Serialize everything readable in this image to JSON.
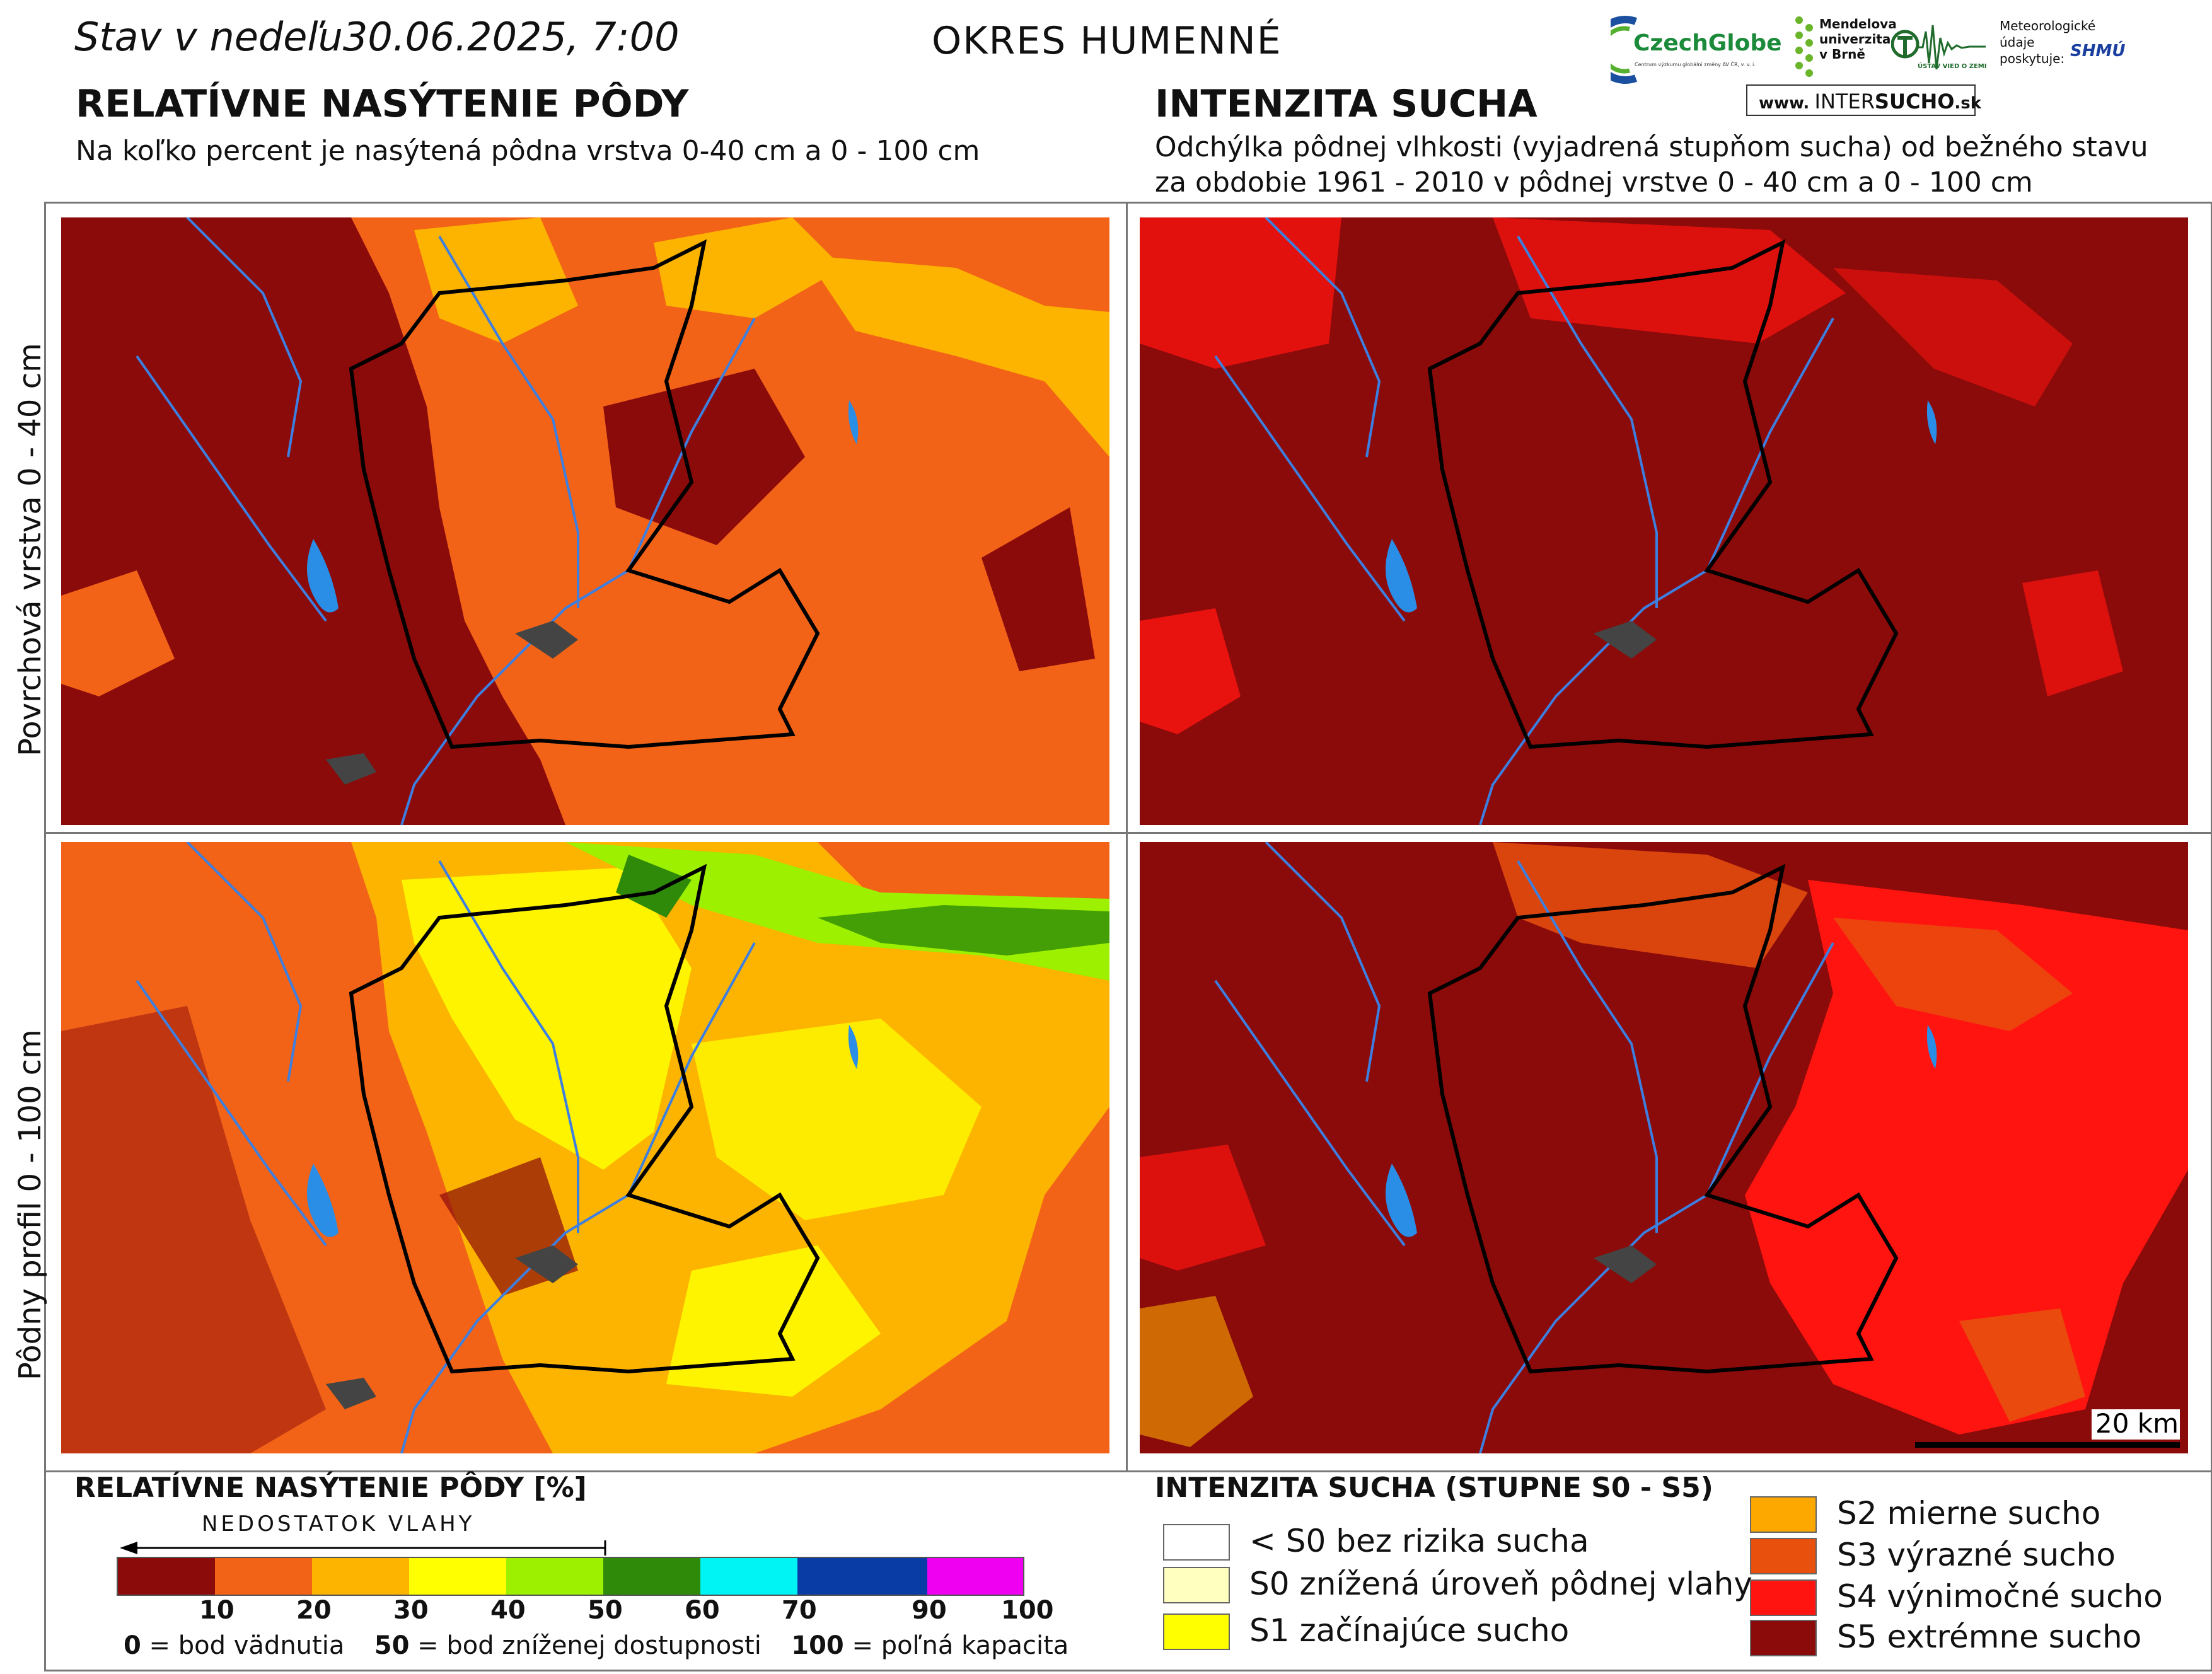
{
  "header": {
    "date_prefix": "Stav v nedeľu",
    "date_value": "30.06.2025, 7:00",
    "district": "OKRES  HUMENNÉ"
  },
  "left_section": {
    "title": "RELATÍVNE NASÝTENIE PÔDY",
    "subtitle": "Na koľko percent je nasýtená pôdna vrstva 0-40 cm a 0 - 100 cm"
  },
  "right_section": {
    "title": "INTENZITA SUCHA",
    "subtitle_line1": "Odchýlka pôdnej vlhkosti (vyjadrená stupňom sucha) od bežného stavu",
    "subtitle_line2": "za obdobie 1961 - 2010 v pôdnej vrstve 0 - 40 cm a 0 - 100 cm"
  },
  "logos": {
    "czechglobe": "CzechGlobe",
    "czechglobe_sub": "Centrum výzkumu globální změny AV ČR, v. v. i.",
    "mendel_line1": "Mendelova",
    "mendel_line2": "univerzita",
    "mendel_line3": "v Brně",
    "uvoz": "ÚSTAV VIED O ZEMI",
    "meteo_line1": "Meteorologické",
    "meteo_line2": "údaje",
    "meteo_line3": "poskytuje:",
    "shmu": "SHMÚ",
    "intersucho_www": "www.",
    "intersucho_name_a": "INTER",
    "intersucho_name_b": "SUCHO",
    "intersucho_tld": ".sk"
  },
  "row_labels": {
    "top": "Povrchová vrstva 0 - 40 cm",
    "bottom": "Pôdny profil 0 - 100 cm"
  },
  "scale_bar": "20 km",
  "saturation_legend": {
    "title": "RELATÍVNE NASÝTENIE PÔDY [%]",
    "arrow_label": "NEDOSTATOK VLAHY",
    "colors": [
      "#8b0a0a",
      "#f26318",
      "#fcb400",
      "#ffff00",
      "#9cf000",
      "#2e8a08",
      "#00f4f4",
      "#0a3ca6",
      "#f000f0"
    ],
    "ticks": [
      "10",
      "20",
      "30",
      "40",
      "50",
      "60",
      "70",
      "90",
      "100"
    ],
    "note_0": "0",
    "note_0_text": " = bod vädnutia",
    "note_50": "50",
    "note_50_text": " = bod zníženej dostupnosti",
    "note_100": "100",
    "note_100_text": " = poľná kapacita"
  },
  "drought_legend": {
    "title": "INTENZITA SUCHA (STUPNE S0 - S5)",
    "items": [
      {
        "label": "< S0 bez rizika sucha",
        "color": "#ffffff"
      },
      {
        "label": "S0 znížená úroveň pôdnej vlahy",
        "color": "#ffffc0"
      },
      {
        "label": "S1 začínajúce sucho",
        "color": "#ffff00"
      },
      {
        "label": "S2 mierne sucho",
        "color": "#fca800"
      },
      {
        "label": "S3 výrazné sucho",
        "color": "#e8500e"
      },
      {
        "label": "S4 výnimočné sucho",
        "color": "#ff1410"
      },
      {
        "label": "S5 extrémne sucho",
        "color": "#8b0a0a"
      }
    ]
  }
}
